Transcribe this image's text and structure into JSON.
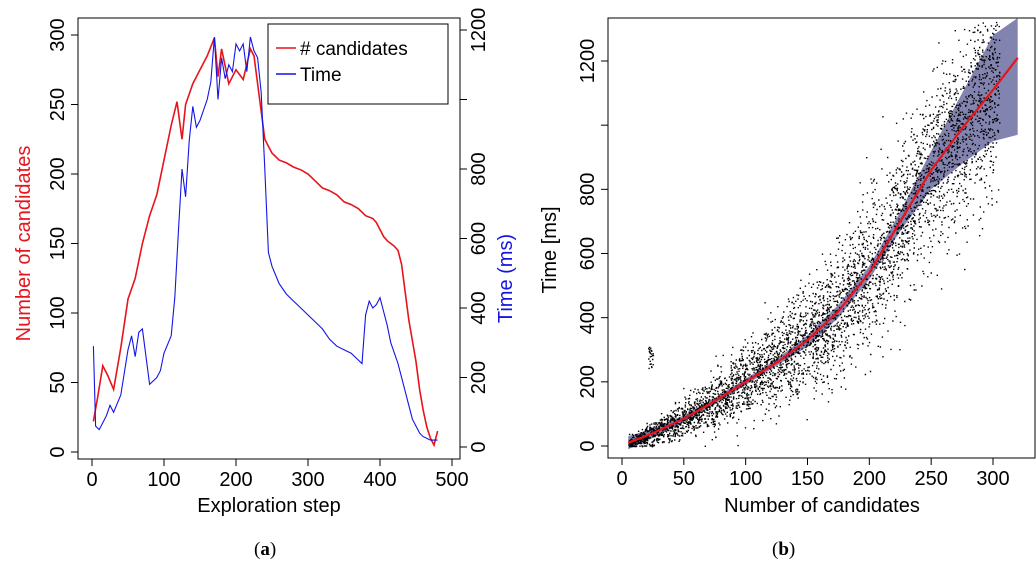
{
  "chart_data": [
    {
      "panel": "(a)",
      "type": "line",
      "xlabel": "Exploration step",
      "ylabel": "Number of candidates",
      "ylabel_right": "Time (ms)",
      "xlim": [
        0,
        500
      ],
      "ylim": [
        0,
        300
      ],
      "ylim_right": [
        0,
        1200
      ],
      "xticks": [
        0,
        100,
        200,
        300,
        400,
        500
      ],
      "yticks": [
        0,
        50,
        100,
        150,
        200,
        250,
        300
      ],
      "yticks_right": [
        0,
        200,
        400,
        600,
        800,
        1200
      ],
      "grid": false,
      "legend_position": "top-right",
      "colors": {
        "candidates": "#e8141c",
        "time": "#1414e6",
        "ylabel": "#e8141c",
        "ylabel_right": "#1414e6"
      },
      "series": [
        {
          "name": "# candidates",
          "axis": "left",
          "x": [
            2,
            8,
            15,
            22,
            30,
            40,
            50,
            60,
            70,
            80,
            90,
            100,
            110,
            118,
            125,
            130,
            140,
            150,
            160,
            170,
            175,
            180,
            190,
            200,
            210,
            220,
            225,
            230,
            235,
            240,
            245,
            250,
            260,
            270,
            280,
            290,
            300,
            310,
            320,
            330,
            340,
            350,
            360,
            370,
            380,
            390,
            395,
            400,
            405,
            410,
            415,
            420,
            425,
            430,
            435,
            440,
            445,
            450,
            455,
            460,
            465,
            470,
            475,
            480
          ],
          "y": [
            22,
            40,
            62,
            55,
            45,
            75,
            110,
            125,
            150,
            170,
            185,
            210,
            235,
            252,
            225,
            250,
            265,
            275,
            285,
            298,
            270,
            290,
            265,
            275,
            268,
            290,
            285,
            265,
            245,
            225,
            220,
            215,
            210,
            208,
            205,
            203,
            200,
            195,
            190,
            188,
            185,
            180,
            178,
            175,
            170,
            168,
            165,
            160,
            155,
            152,
            150,
            148,
            145,
            135,
            115,
            95,
            80,
            65,
            45,
            30,
            18,
            10,
            5,
            15
          ]
        },
        {
          "name": "Time",
          "axis": "right",
          "x": [
            2,
            5,
            10,
            15,
            20,
            25,
            30,
            40,
            50,
            55,
            60,
            65,
            70,
            80,
            90,
            95,
            100,
            110,
            115,
            120,
            125,
            130,
            135,
            140,
            145,
            150,
            160,
            165,
            170,
            175,
            180,
            185,
            190,
            195,
            200,
            205,
            210,
            215,
            220,
            225,
            230,
            235,
            240,
            245,
            250,
            260,
            270,
            280,
            290,
            300,
            310,
            320,
            330,
            340,
            350,
            360,
            370,
            375,
            380,
            385,
            390,
            395,
            400,
            405,
            410,
            415,
            420,
            425,
            430,
            435,
            440,
            445,
            450,
            455,
            460,
            470,
            480
          ],
          "y": [
            290,
            60,
            50,
            70,
            90,
            120,
            100,
            150,
            280,
            320,
            260,
            330,
            340,
            180,
            200,
            220,
            270,
            320,
            430,
            620,
            800,
            720,
            880,
            980,
            920,
            940,
            1000,
            1050,
            1180,
            1000,
            1120,
            1060,
            1100,
            1080,
            1160,
            1140,
            1160,
            1080,
            1180,
            1140,
            1120,
            1020,
            800,
            560,
            520,
            470,
            440,
            420,
            400,
            380,
            360,
            340,
            310,
            290,
            280,
            270,
            250,
            240,
            380,
            420,
            400,
            410,
            430,
            390,
            350,
            300,
            270,
            240,
            200,
            160,
            120,
            80,
            60,
            40,
            30,
            20,
            20
          ]
        }
      ]
    },
    {
      "panel": "(b)",
      "type": "scatter",
      "xlabel": "Number of candidates",
      "ylabel": "Time [ms]",
      "xlim": [
        0,
        320
      ],
      "ylim": [
        0,
        1300
      ],
      "xticks": [
        0,
        50,
        100,
        150,
        200,
        250,
        300
      ],
      "yticks": [
        0,
        200,
        400,
        600,
        800,
        1200
      ],
      "grid": false,
      "points_description_count": 6000,
      "colors": {
        "points": "#000000",
        "fit": "#e8141c",
        "band": "#5a5a96"
      },
      "fit": {
        "x": [
          5,
          25,
          50,
          75,
          100,
          125,
          150,
          175,
          200,
          225,
          250,
          275,
          300,
          320
        ],
        "y": [
          10,
          40,
          85,
          140,
          200,
          260,
          330,
          420,
          540,
          700,
          860,
          990,
          1110,
          1210
        ]
      },
      "band_low": [
        -10,
        25,
        75,
        130,
        190,
        250,
        310,
        400,
        520,
        670,
        800,
        880,
        950,
        970
      ],
      "band_high": [
        30,
        55,
        95,
        150,
        210,
        270,
        345,
        440,
        560,
        730,
        920,
        1100,
        1280,
        1440
      ]
    }
  ]
}
